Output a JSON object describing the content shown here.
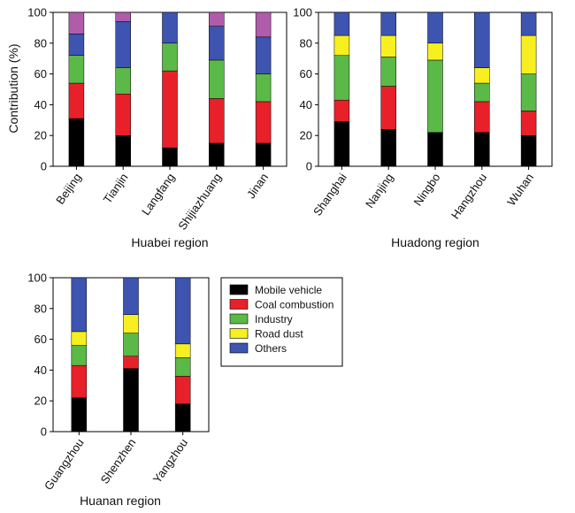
{
  "colors": {
    "mobile": "#000000",
    "coal": "#e8202a",
    "industry": "#5bb947",
    "dust": "#f7ef1f",
    "others": "#3d54b0",
    "other_pink": "#b05cab"
  },
  "legend": {
    "items": [
      {
        "key": "mobile",
        "label": "Mobile vehicle",
        "color": "#000000"
      },
      {
        "key": "coal",
        "label": "Coal combustion",
        "color": "#e8202a"
      },
      {
        "key": "industry",
        "label": "Industry",
        "color": "#5bb947"
      },
      {
        "key": "dust",
        "label": "Road dust",
        "color": "#f7ef1f"
      },
      {
        "key": "others",
        "label": "Others",
        "color": "#3d54b0"
      }
    ]
  },
  "chart_data": [
    {
      "type": "bar",
      "stacked": true,
      "title": "",
      "xlabel": "Huabei region",
      "ylabel": "Contribution (%)",
      "ylim": [
        0,
        100
      ],
      "yticks": [
        "0",
        "20",
        "40",
        "60",
        "80",
        "100"
      ],
      "categories": [
        "Beijing",
        "Tianjin",
        "Langfang",
        "Shijiazhuang",
        "Jinan"
      ],
      "series": [
        {
          "name": "Mobile vehicle",
          "color": "#000000",
          "values": [
            31,
            20,
            12,
            15,
            15
          ]
        },
        {
          "name": "Coal combustion",
          "color": "#e8202a",
          "values": [
            23,
            27,
            50,
            29,
            27
          ]
        },
        {
          "name": "Industry",
          "color": "#5bb947",
          "values": [
            18,
            17,
            18,
            25,
            18
          ]
        },
        {
          "name": "Road dust",
          "color": "#f7ef1f",
          "values": [
            0,
            0,
            0,
            0,
            0
          ]
        },
        {
          "name": "Others (blue)",
          "color": "#3d54b0",
          "values": [
            14,
            30,
            20,
            22,
            24
          ]
        },
        {
          "name": "Others (pink)",
          "color": "#b05cab",
          "values": [
            14,
            6,
            0,
            9,
            16
          ]
        }
      ]
    },
    {
      "type": "bar",
      "stacked": true,
      "title": "",
      "xlabel": "Huadong region",
      "ylabel": "",
      "ylim": [
        0,
        100
      ],
      "yticks": [
        "0",
        "20",
        "40",
        "60",
        "80",
        "100"
      ],
      "categories": [
        "Shanghai",
        "Nanjing",
        "Ningbo",
        "Hangzhou",
        "Wuhan"
      ],
      "series": [
        {
          "name": "Mobile vehicle",
          "color": "#000000",
          "values": [
            29,
            24,
            22,
            22,
            20
          ]
        },
        {
          "name": "Coal combustion",
          "color": "#e8202a",
          "values": [
            14,
            28,
            0,
            20,
            16
          ]
        },
        {
          "name": "Industry",
          "color": "#5bb947",
          "values": [
            29,
            19,
            47,
            12,
            24
          ]
        },
        {
          "name": "Road dust",
          "color": "#f7ef1f",
          "values": [
            13,
            14,
            11,
            10,
            25
          ]
        },
        {
          "name": "Others",
          "color": "#3d54b0",
          "values": [
            15,
            15,
            20,
            36,
            15
          ]
        }
      ]
    },
    {
      "type": "bar",
      "stacked": true,
      "title": "",
      "xlabel": "Huanan region",
      "ylabel": "",
      "ylim": [
        0,
        100
      ],
      "yticks": [
        "0",
        "20",
        "40",
        "60",
        "80",
        "100"
      ],
      "categories": [
        "Guangzhou",
        "Shenzhen",
        "Yangzhou"
      ],
      "series": [
        {
          "name": "Mobile vehicle",
          "color": "#000000",
          "values": [
            22,
            41,
            18
          ]
        },
        {
          "name": "Coal combustion",
          "color": "#e8202a",
          "values": [
            21,
            8,
            18
          ]
        },
        {
          "name": "Industry",
          "color": "#5bb947",
          "values": [
            13,
            15,
            12
          ]
        },
        {
          "name": "Road dust",
          "color": "#f7ef1f",
          "values": [
            9,
            12,
            9
          ]
        },
        {
          "name": "Others",
          "color": "#3d54b0",
          "values": [
            35,
            24,
            43
          ]
        }
      ]
    }
  ]
}
